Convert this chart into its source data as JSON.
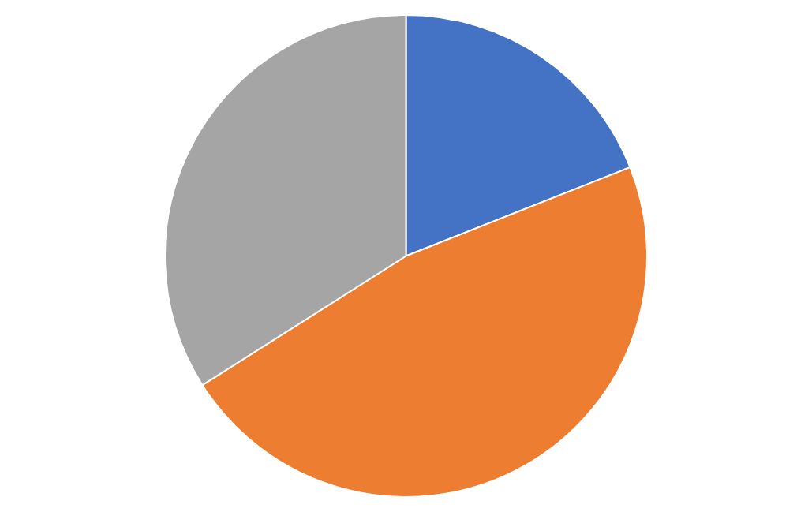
{
  "chart_data": {
    "type": "pie",
    "categories": [
      null,
      null,
      null
    ],
    "values": [
      19,
      47,
      34
    ],
    "colors": [
      "#4472c4",
      "#ed7d31",
      "#a5a5a5"
    ],
    "legend": false
  }
}
